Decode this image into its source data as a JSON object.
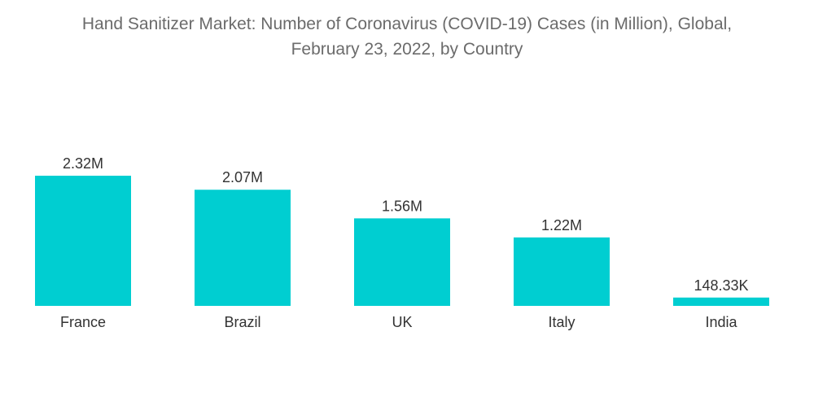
{
  "chart_data": {
    "type": "bar",
    "title_lines": [
      "Hand Sanitizer Market: Number of Coronavirus (COVID-19) Cases (in Million), Global,",
      "February 23, 2022, by Country"
    ],
    "categories": [
      "France",
      "Brazil",
      "UK",
      "Italy",
      "India"
    ],
    "values": [
      2.32,
      2.07,
      1.56,
      1.22,
      0.14833
    ],
    "value_labels": [
      "2.32M",
      "2.07M",
      "1.56M",
      "1.22M",
      "148.33K"
    ],
    "xlabel": "",
    "ylabel": "",
    "ylim": [
      0,
      2.32
    ],
    "grid": false,
    "legend": "none",
    "bar_color": "#00CED1"
  }
}
